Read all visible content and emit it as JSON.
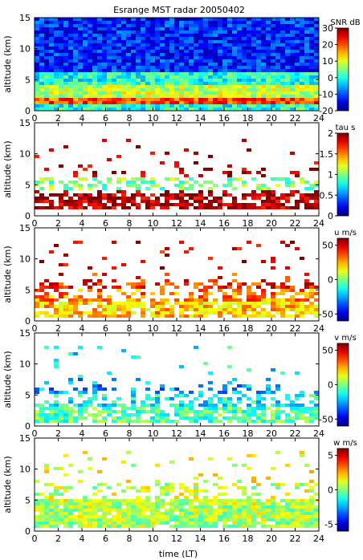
{
  "title": "Esrange MST radar 20050402",
  "chart_data": {
    "type": "heatmap",
    "title": "Esrange MST radar 20050402",
    "xlabel": "time (LT)",
    "xlim": [
      0,
      24
    ],
    "x_ticks": [
      "0",
      "2",
      "4",
      "6",
      "8",
      "10",
      "12",
      "14",
      "16",
      "18",
      "20",
      "22",
      "24"
    ],
    "panels": [
      {
        "id": "snr",
        "ylabel": "altitude (km)",
        "ylim": [
          0,
          15
        ],
        "y_ticks": [
          "0",
          "5",
          "10",
          "15"
        ],
        "colorbar_label": "SNR dB",
        "clim": [
          -20,
          30
        ],
        "colorbar_ticks": [
          "30",
          "20",
          "10",
          "0",
          "-10",
          "-20"
        ],
        "coverage": "full",
        "field": [
          {
            "alt": [
              0,
              1
            ],
            "value": 0
          },
          {
            "alt": [
              1,
              2
            ],
            "value": 20
          },
          {
            "alt": [
              2,
              4
            ],
            "value": 8
          },
          {
            "alt": [
              4,
              6
            ],
            "value": 0
          },
          {
            "alt": [
              6,
              15
            ],
            "value": -12
          }
        ]
      },
      {
        "id": "tau",
        "ylabel": "altitude (km)",
        "ylim": [
          0,
          15
        ],
        "y_ticks": [
          "0",
          "5",
          "10",
          "15"
        ],
        "colorbar_label": "tau s",
        "clim": [
          0,
          2
        ],
        "colorbar_ticks": [
          "2",
          "1.5",
          "1",
          "0.5",
          "0"
        ],
        "coverage": "sparse",
        "field": [
          {
            "alt": [
              1,
              4
            ],
            "value": 1.9
          },
          {
            "alt": [
              4,
              6
            ],
            "value": 1.0
          },
          {
            "alt": [
              6,
              12.5
            ],
            "value": 1.9
          }
        ]
      },
      {
        "id": "u",
        "ylabel": "altitude (km)",
        "ylim": [
          0,
          15
        ],
        "y_ticks": [
          "0",
          "5",
          "10",
          "15"
        ],
        "colorbar_label": "u m/s",
        "clim": [
          -60,
          60
        ],
        "colorbar_ticks": [
          "50",
          "0",
          "-50"
        ],
        "coverage": "sparse",
        "field": [
          {
            "alt": [
              0.5,
              3
            ],
            "value": 22
          },
          {
            "alt": [
              3,
              5
            ],
            "value": 30
          },
          {
            "alt": [
              5,
              8
            ],
            "value": 42
          },
          {
            "alt": [
              8,
              13
            ],
            "value": 50
          }
        ]
      },
      {
        "id": "v",
        "ylabel": "altitude (km)",
        "ylim": [
          0,
          15
        ],
        "y_ticks": [
          "0",
          "5",
          "10",
          "15"
        ],
        "colorbar_label": "v m/s",
        "clim": [
          -60,
          60
        ],
        "colorbar_ticks": [
          "50",
          "0",
          "-50"
        ],
        "coverage": "sparse",
        "field": [
          {
            "alt": [
              0.5,
              3
            ],
            "value": -5
          },
          {
            "alt": [
              3,
              5
            ],
            "value": -15
          },
          {
            "alt": [
              5,
              8
            ],
            "value": -25
          },
          {
            "alt": [
              8,
              13
            ],
            "value": -15
          }
        ]
      },
      {
        "id": "w",
        "ylabel": "altitude (km)",
        "ylim": [
          0,
          15
        ],
        "y_ticks": [
          "0",
          "5",
          "10",
          "15"
        ],
        "colorbar_label": "w m/s",
        "clim": [
          -6,
          6
        ],
        "colorbar_ticks": [
          "5",
          "0",
          "-5"
        ],
        "coverage": "medium",
        "field": [
          {
            "alt": [
              0.5,
              4
            ],
            "value": 0.5
          },
          {
            "alt": [
              4,
              8
            ],
            "value": 0.8
          },
          {
            "alt": [
              8,
              13
            ],
            "value": 1.2
          }
        ]
      }
    ]
  }
}
